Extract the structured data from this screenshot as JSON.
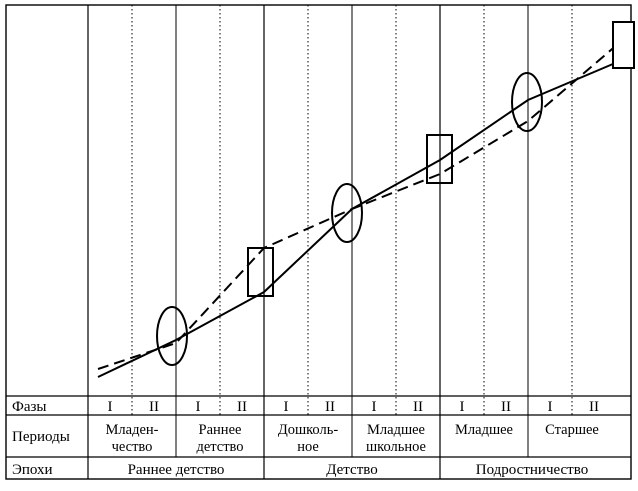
{
  "rows": {
    "phases_label": "Фазы",
    "periods_label": "Периоды",
    "epochs_label": "Эпохи"
  },
  "phases": [
    "I",
    "II",
    "I",
    "II",
    "I",
    "II",
    "I",
    "II",
    "I",
    "II",
    "I",
    "II"
  ],
  "periods": [
    {
      "lines": [
        "Младен-",
        "чество"
      ]
    },
    {
      "lines": [
        "Раннее",
        "детство"
      ]
    },
    {
      "lines": [
        "Дошколь-",
        "ное"
      ]
    },
    {
      "lines": [
        "Младшее",
        "школьное"
      ]
    },
    {
      "lines": [
        "Младшее"
      ]
    },
    {
      "lines": [
        "Старшее"
      ]
    }
  ],
  "epochs": [
    "Раннее детство",
    "Детство",
    "Подростничество"
  ],
  "markers": [
    {
      "shape": "ellipse"
    },
    {
      "shape": "rectangle"
    },
    {
      "shape": "ellipse"
    },
    {
      "shape": "rectangle"
    },
    {
      "shape": "ellipse"
    },
    {
      "shape": "rectangle"
    }
  ]
}
